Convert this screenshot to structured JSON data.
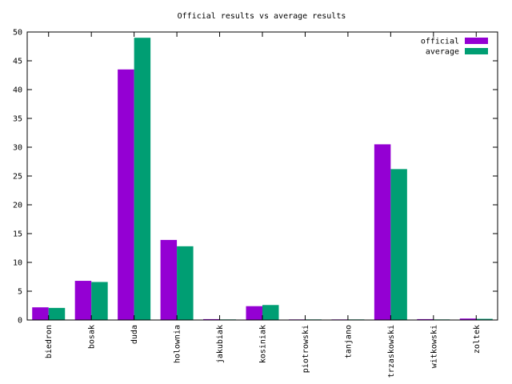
{
  "chart_data": {
    "type": "bar",
    "title": "Official results vs average results",
    "xlabel": "",
    "ylabel": "",
    "ylim": [
      0,
      50
    ],
    "yticks": [
      0,
      5,
      10,
      15,
      20,
      25,
      30,
      35,
      40,
      45,
      50
    ],
    "grid": false,
    "legend_position": "top-right",
    "categories": [
      "biedron",
      "bosak",
      "duda",
      "holownia",
      "jakubiak",
      "kosiniak",
      "piotrowski",
      "tanjano",
      "trzaskowski",
      "witkowski",
      "zoltek"
    ],
    "series": [
      {
        "name": "official",
        "color": "#9400d3",
        "values": [
          2.2,
          6.8,
          43.5,
          13.9,
          0.15,
          2.4,
          0.1,
          0.1,
          30.5,
          0.15,
          0.25
        ]
      },
      {
        "name": "average",
        "color": "#009e73",
        "values": [
          2.1,
          6.6,
          49.0,
          12.8,
          0.1,
          2.6,
          0.1,
          0.1,
          26.2,
          0.1,
          0.2
        ]
      }
    ]
  }
}
